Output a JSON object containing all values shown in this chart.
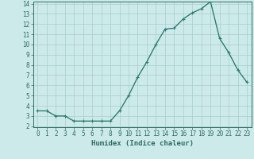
{
  "x": [
    0,
    1,
    2,
    3,
    4,
    5,
    6,
    7,
    8,
    9,
    10,
    11,
    12,
    13,
    14,
    15,
    16,
    17,
    18,
    19,
    20,
    21,
    22,
    23
  ],
  "y": [
    3.5,
    3.5,
    3.0,
    3.0,
    2.5,
    2.5,
    2.5,
    2.5,
    2.5,
    3.5,
    5.0,
    6.8,
    8.3,
    10.0,
    11.5,
    11.6,
    12.5,
    13.1,
    13.5,
    14.2,
    10.6,
    9.2,
    7.5,
    6.3
  ],
  "line_color": "#2e7d6e",
  "bg_color": "#cdeaea",
  "grid_color": "#a8cccc",
  "xlabel": "Humidex (Indice chaleur)",
  "ylim": [
    2,
    14
  ],
  "xlim": [
    -0.5,
    23.5
  ],
  "yticks": [
    2,
    3,
    4,
    5,
    6,
    7,
    8,
    9,
    10,
    11,
    12,
    13,
    14
  ],
  "xticks": [
    0,
    1,
    2,
    3,
    4,
    5,
    6,
    7,
    8,
    9,
    10,
    11,
    12,
    13,
    14,
    15,
    16,
    17,
    18,
    19,
    20,
    21,
    22,
    23
  ],
  "marker": "+",
  "marker_size": 3,
  "line_width": 1.0,
  "font_color": "#2e6b60",
  "tick_fontsize": 5.5,
  "label_fontsize": 6.5
}
